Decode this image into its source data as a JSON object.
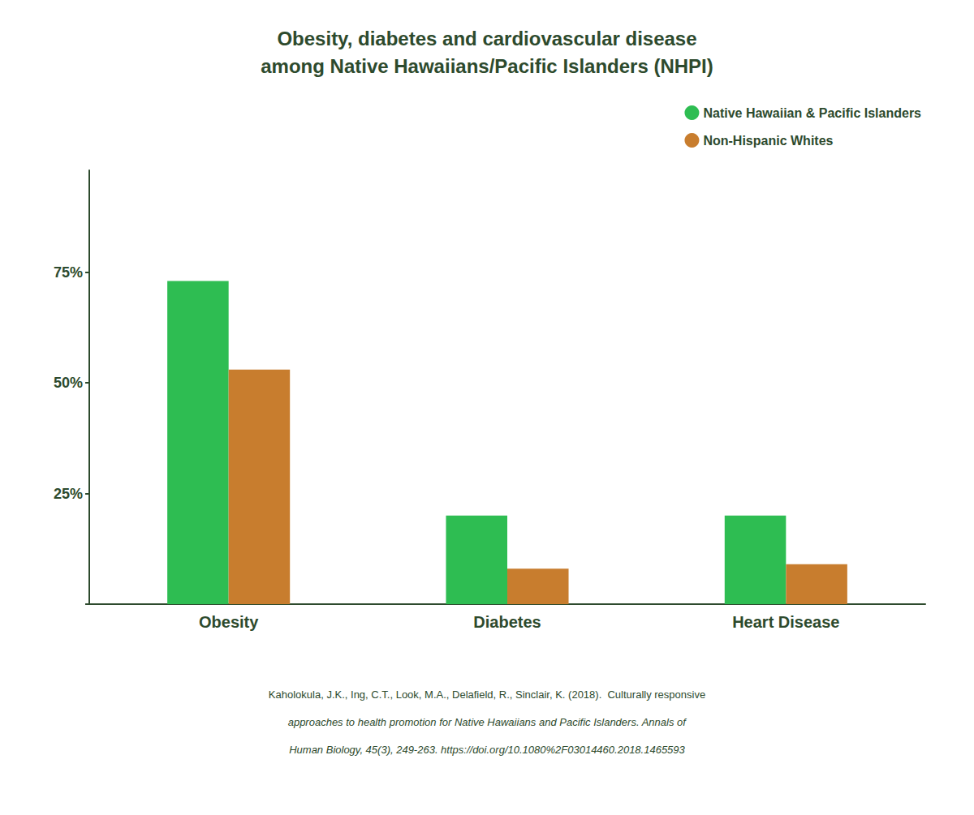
{
  "chart_data": {
    "type": "bar",
    "title": "Obesity, diabetes and cardiovascular disease\namong Native Hawaiians/Pacific Islanders (NHPI)",
    "categories": [
      "Obesity",
      "Diabetes",
      "Heart Disease"
    ],
    "series": [
      {
        "name": "Native Hawaiian & Pacific Islanders",
        "color": "#2ebd52",
        "values": [
          0.73,
          0.2,
          0.2
        ]
      },
      {
        "name": "Non-Hispanic Whites",
        "color": "#c87d2e",
        "values": [
          0.53,
          0.08,
          0.09
        ]
      }
    ],
    "ylim": [
      0,
      0.98
    ],
    "yticks": [
      {
        "value": 0,
        "label": ""
      },
      {
        "value": 0.25,
        "label": "25%"
      },
      {
        "value": 0.5,
        "label": "50%"
      },
      {
        "value": 0.75,
        "label": "75%"
      }
    ],
    "grid": false,
    "legend": "upper right",
    "annotations": [
      "Kaholokula, J.K., Ing, C.T., Look, M.A., Delafield, R., Sinclair, K. (2018).  Culturally responsive",
      "approaches to health promotion for Native Hawaiians and Pacific Islanders. Annals of",
      "Human Biology, 45(3), 249-263. https://doi.org/10.1080%2F03014460.2018.1465593"
    ]
  }
}
